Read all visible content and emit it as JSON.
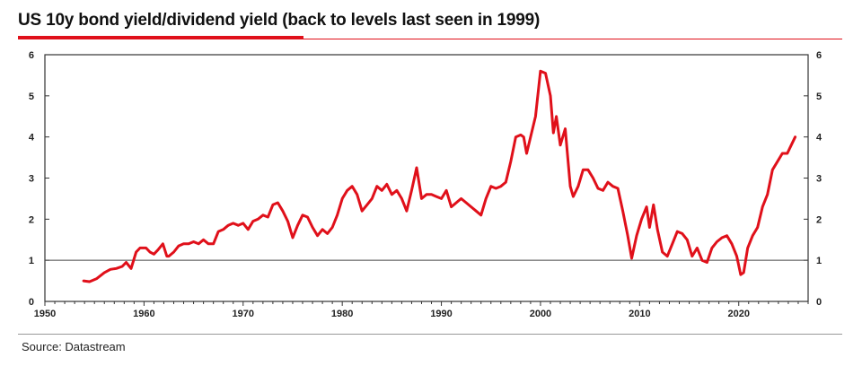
{
  "title": "US 10y bond yield/dividend yield (back to levels last seen in 1999)",
  "source": "Source: Datastream",
  "colors": {
    "series": "#e0101a",
    "accent": "#e0101a",
    "axis": "#333333",
    "reference": "#444444"
  },
  "chart_data": {
    "type": "line",
    "title": "US 10y bond yield/dividend yield (back to levels last seen in 1999)",
    "xlabel": "",
    "ylabel": "",
    "xlim": [
      1950,
      2027
    ],
    "ylim": [
      0,
      6
    ],
    "x_ticks": [
      1950,
      1960,
      1970,
      1980,
      1990,
      2000,
      2010,
      2020
    ],
    "y_ticks": [
      0,
      1,
      2,
      3,
      4,
      5,
      6
    ],
    "y_axis_right": true,
    "grid": false,
    "reference_line": 1,
    "series": [
      {
        "x": [
          1953.9,
          1954.5,
          1955.2,
          1956.0,
          1956.6,
          1957.2,
          1957.8,
          1958.2,
          1958.7,
          1959.2,
          1959.6,
          1960.2,
          1960.6,
          1961.0,
          1961.4,
          1961.9,
          1962.3,
          1962.5,
          1963.0,
          1963.5,
          1964.0,
          1964.5,
          1965.0,
          1965.5,
          1966.0,
          1966.5,
          1967.0,
          1967.5,
          1968.0,
          1968.5,
          1969.0,
          1969.5,
          1970.0,
          1970.5,
          1971.0,
          1971.5,
          1972.0,
          1972.5,
          1973.0,
          1973.5,
          1974.0,
          1974.5,
          1975.0,
          1975.5,
          1976.0,
          1976.5,
          1977.0,
          1977.5,
          1978.0,
          1978.5,
          1979.0,
          1979.5,
          1980.0,
          1980.5,
          1981.0,
          1981.5,
          1982.0,
          1982.5,
          1983.0,
          1983.5,
          1984.0,
          1984.5,
          1985.0,
          1985.5,
          1986.0,
          1986.5,
          1987.0,
          1987.5,
          1988.0,
          1988.5,
          1989.0,
          1989.5,
          1990.0,
          1990.5,
          1991.0,
          1991.5,
          1992.0,
          1992.5,
          1993.0,
          1993.5,
          1994.0,
          1994.5,
          1995.0,
          1995.5,
          1996.0,
          1996.5,
          1997.0,
          1997.5,
          1998.0,
          1998.3,
          1998.6,
          1999.0,
          1999.5,
          2000.0,
          2000.5,
          2001.0,
          2001.3,
          2001.6,
          2002.0,
          2002.5,
          2003.0,
          2003.3,
          2003.8,
          2004.3,
          2004.8,
          2005.3,
          2005.8,
          2006.3,
          2006.8,
          2007.3,
          2007.8,
          2008.3,
          2008.8,
          2009.2,
          2009.7,
          2010.2,
          2010.7,
          2011.0,
          2011.4,
          2011.8,
          2012.3,
          2012.8,
          2013.3,
          2013.8,
          2014.3,
          2014.8,
          2015.3,
          2015.8,
          2016.3,
          2016.8,
          2017.3,
          2017.8,
          2018.3,
          2018.8,
          2019.3,
          2019.8,
          2020.2,
          2020.5,
          2020.9,
          2021.4,
          2021.9,
          2022.4,
          2022.9,
          2023.4,
          2023.9,
          2024.4,
          2024.9,
          2025.3,
          2025.7
        ],
        "y": [
          0.5,
          0.48,
          0.55,
          0.7,
          0.78,
          0.8,
          0.85,
          0.95,
          0.8,
          1.2,
          1.3,
          1.3,
          1.2,
          1.15,
          1.25,
          1.4,
          1.1,
          1.1,
          1.2,
          1.35,
          1.4,
          1.4,
          1.45,
          1.4,
          1.5,
          1.4,
          1.4,
          1.7,
          1.75,
          1.85,
          1.9,
          1.85,
          1.9,
          1.75,
          1.95,
          2.0,
          2.1,
          2.05,
          2.35,
          2.4,
          2.2,
          1.95,
          1.55,
          1.85,
          2.1,
          2.05,
          1.8,
          1.6,
          1.75,
          1.65,
          1.8,
          2.1,
          2.5,
          2.7,
          2.8,
          2.6,
          2.2,
          2.35,
          2.5,
          2.8,
          2.7,
          2.85,
          2.6,
          2.7,
          2.5,
          2.2,
          2.7,
          3.25,
          2.5,
          2.6,
          2.6,
          2.55,
          2.5,
          2.7,
          2.3,
          2.4,
          2.5,
          2.4,
          2.3,
          2.2,
          2.1,
          2.5,
          2.8,
          2.75,
          2.8,
          2.9,
          3.4,
          4.0,
          4.05,
          4.0,
          3.6,
          4.0,
          4.5,
          5.6,
          5.55,
          5.0,
          4.1,
          4.5,
          3.8,
          4.2,
          2.8,
          2.55,
          2.8,
          3.2,
          3.2,
          3.0,
          2.75,
          2.7,
          2.9,
          2.8,
          2.75,
          2.2,
          1.6,
          1.05,
          1.6,
          2.0,
          2.3,
          1.8,
          2.35,
          1.75,
          1.2,
          1.1,
          1.4,
          1.7,
          1.65,
          1.5,
          1.1,
          1.3,
          1.0,
          0.95,
          1.3,
          1.45,
          1.55,
          1.6,
          1.4,
          1.1,
          0.65,
          0.7,
          1.3,
          1.6,
          1.8,
          2.3,
          2.6,
          3.2,
          3.4,
          3.6,
          3.6,
          3.8,
          4.0
        ]
      }
    ]
  }
}
